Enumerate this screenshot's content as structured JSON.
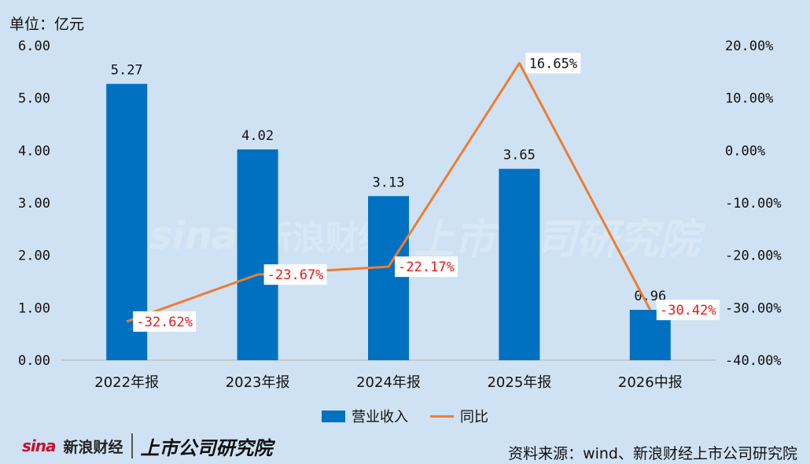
{
  "unit_label": "单位：亿元",
  "legend": {
    "bar_label": "营业收入",
    "line_label": "同比"
  },
  "source": "资料来源：wind、新浪财经上市公司研究院",
  "footer": {
    "sina_mark": "sina",
    "sina_name": "新浪财经",
    "brand": "上市公司研究院"
  },
  "watermark": {
    "sina_mark": "sina",
    "sina_name": "新浪财经",
    "brand": "上市公司研究院"
  },
  "colors": {
    "background": "#cfe2f3",
    "bar": "#0070c0",
    "line": "#ed7d31",
    "line_label_text": "#e31a1a",
    "axis": "#bfbfbf"
  },
  "chart_data": {
    "type": "bar",
    "categories": [
      "2022年报",
      "2023年报",
      "2024年报",
      "2025年报",
      "2026中报"
    ],
    "series": [
      {
        "name": "营业收入",
        "type": "bar",
        "axis": "left",
        "values": [
          5.27,
          4.02,
          3.13,
          3.65,
          0.96
        ],
        "labels": [
          "5.27",
          "4.02",
          "3.13",
          "3.65",
          "0.96"
        ]
      },
      {
        "name": "同比",
        "type": "line",
        "axis": "right",
        "values": [
          -32.62,
          -23.67,
          -22.17,
          16.65,
          -30.42
        ],
        "labels": [
          "-32.62%",
          "-23.67%",
          "-22.17%",
          "16.65%",
          "-30.42%"
        ]
      }
    ],
    "y_left": {
      "min": 0,
      "max": 6,
      "ticks": [
        0,
        1,
        2,
        3,
        4,
        5,
        6
      ],
      "tick_labels": [
        "0.00",
        "1.00",
        "2.00",
        "3.00",
        "4.00",
        "5.00",
        "6.00"
      ]
    },
    "y_right": {
      "min": -40,
      "max": 20,
      "ticks": [
        -40,
        -30,
        -20,
        -10,
        0,
        10,
        20
      ],
      "tick_labels": [
        "-40.00%",
        "-30.00%",
        "-20.00%",
        "-10.00%",
        "0.00%",
        "10.00%",
        "20.00%"
      ]
    },
    "grid": false,
    "legend_position": "bottom"
  }
}
